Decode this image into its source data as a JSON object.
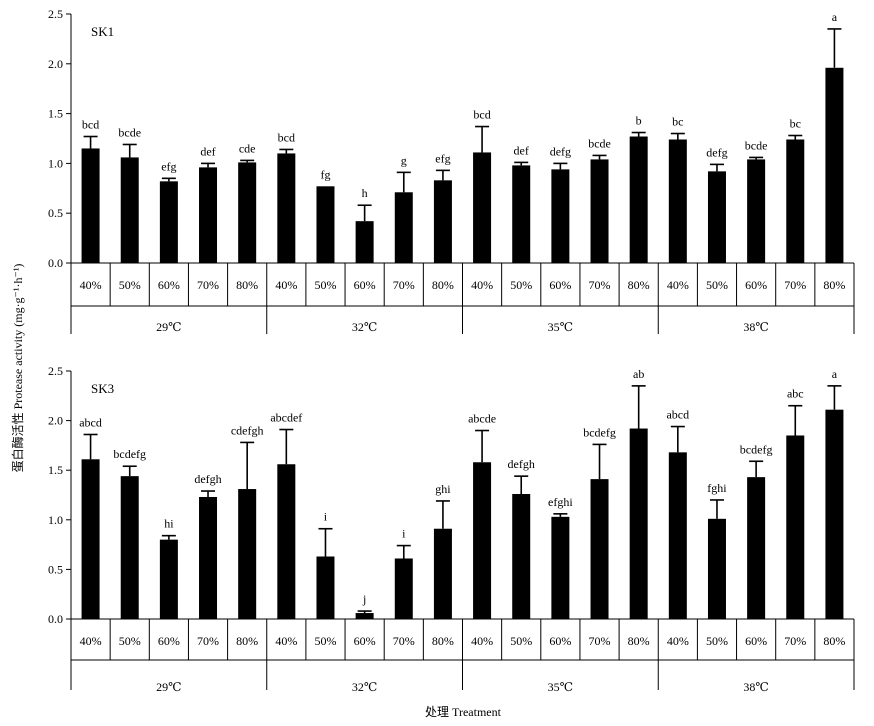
{
  "figure": {
    "xlabel": "处理 Treatment",
    "ylabel": "蛋白酶活性 Protease activity (mg·g⁻¹·h⁻¹)"
  },
  "chart_data": [
    {
      "type": "bar",
      "panel": "SK1",
      "groups": [
        "29℃",
        "32℃",
        "35℃",
        "38℃"
      ],
      "categories": [
        "40%",
        "50%",
        "60%",
        "70%",
        "80%",
        "40%",
        "50%",
        "60%",
        "70%",
        "80%",
        "40%",
        "50%",
        "60%",
        "70%",
        "80%",
        "40%",
        "50%",
        "60%",
        "70%",
        "80%"
      ],
      "values": [
        1.15,
        1.06,
        0.82,
        0.96,
        1.01,
        1.1,
        0.77,
        0.42,
        0.71,
        0.83,
        1.11,
        0.98,
        0.94,
        1.04,
        1.27,
        1.24,
        0.92,
        1.04,
        1.24,
        1.96
      ],
      "errors": [
        0.12,
        0.13,
        0.03,
        0.04,
        0.02,
        0.04,
        0.0,
        0.16,
        0.2,
        0.1,
        0.26,
        0.03,
        0.06,
        0.04,
        0.04,
        0.06,
        0.07,
        0.02,
        0.04,
        0.39
      ],
      "labels": [
        "bcd",
        "bcde",
        "efg",
        "def",
        "cde",
        "bcd",
        "fg",
        "h",
        "g",
        "efg",
        "bcd",
        "def",
        "defg",
        "bcde",
        "b",
        "bc",
        "defg",
        "bcde",
        "bc",
        "a"
      ],
      "ylim": [
        0,
        2.5
      ],
      "yticks": [
        "0.0",
        "0.5",
        "1.0",
        "1.5",
        "2.0",
        "2.5"
      ],
      "grid": false,
      "color": "#000000"
    },
    {
      "type": "bar",
      "panel": "SK3",
      "groups": [
        "29℃",
        "32℃",
        "35℃",
        "38℃"
      ],
      "categories": [
        "40%",
        "50%",
        "60%",
        "70%",
        "80%",
        "40%",
        "50%",
        "60%",
        "70%",
        "80%",
        "40%",
        "50%",
        "60%",
        "70%",
        "80%",
        "40%",
        "50%",
        "60%",
        "70%",
        "80%"
      ],
      "values": [
        1.61,
        1.44,
        0.8,
        1.23,
        1.31,
        1.56,
        0.63,
        0.06,
        0.61,
        0.91,
        1.58,
        1.26,
        1.03,
        1.41,
        1.92,
        1.68,
        1.01,
        1.43,
        1.85,
        2.11
      ],
      "errors": [
        0.25,
        0.1,
        0.04,
        0.06,
        0.47,
        0.35,
        0.28,
        0.02,
        0.13,
        0.28,
        0.32,
        0.18,
        0.03,
        0.35,
        0.43,
        0.26,
        0.19,
        0.16,
        0.3,
        0.24
      ],
      "labels": [
        "abcd",
        "bcdefg",
        "hi",
        "defgh",
        "cdefgh",
        "abcdef",
        "i",
        "j",
        "i",
        "ghi",
        "abcde",
        "defgh",
        "efghi",
        "bcdefg",
        "ab",
        "abcd",
        "fghi",
        "bcdefg",
        "abc",
        "a"
      ],
      "ylim": [
        0,
        2.5
      ],
      "yticks": [
        "0.0",
        "0.5",
        "1.0",
        "1.5",
        "2.0",
        "2.5"
      ],
      "grid": false,
      "color": "#000000"
    }
  ]
}
